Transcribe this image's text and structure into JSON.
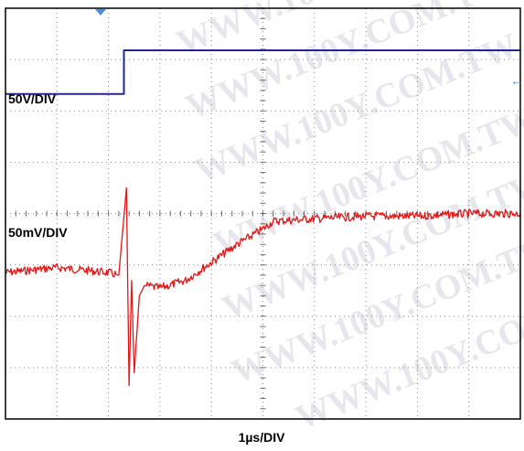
{
  "chart_data": {
    "type": "line",
    "title": "",
    "xlabel": "1µs/DIV",
    "divisions": {
      "x": 10,
      "y": 8
    },
    "x_range_div": [
      0,
      10
    ],
    "grid": true,
    "grid_style": "dotted",
    "series": [
      {
        "label_text": "50V/DIV",
        "color": "#1f2a8c",
        "x_div": [
          0,
          2.3,
          2.3,
          2.35,
          10
        ],
        "y_div": [
          1.67,
          1.67,
          0.82,
          0.82,
          0.82
        ]
      },
      {
        "label_text": "50mV/DIV",
        "color": "#e01818",
        "x_div": [
          0,
          0.5,
          1.0,
          1.5,
          2.0,
          2.2,
          2.35,
          2.4,
          2.45,
          2.5,
          2.6,
          2.7,
          3.0,
          3.5,
          4.0,
          4.5,
          5.0,
          5.2,
          6.0,
          7.0,
          8.0,
          9.0,
          10
        ],
        "y_div": [
          5.15,
          5.1,
          5.05,
          5.1,
          5.15,
          5.2,
          3.5,
          7.35,
          5.3,
          7.1,
          5.6,
          5.4,
          5.45,
          5.3,
          4.95,
          4.6,
          4.3,
          4.15,
          4.1,
          4.05,
          4.05,
          4.0,
          4.0
        ]
      }
    ],
    "trigger_marker_color": "#4a90d9",
    "right_marker_glyph": "←",
    "watermark_text": "WWW.100Y.COM.TW"
  }
}
